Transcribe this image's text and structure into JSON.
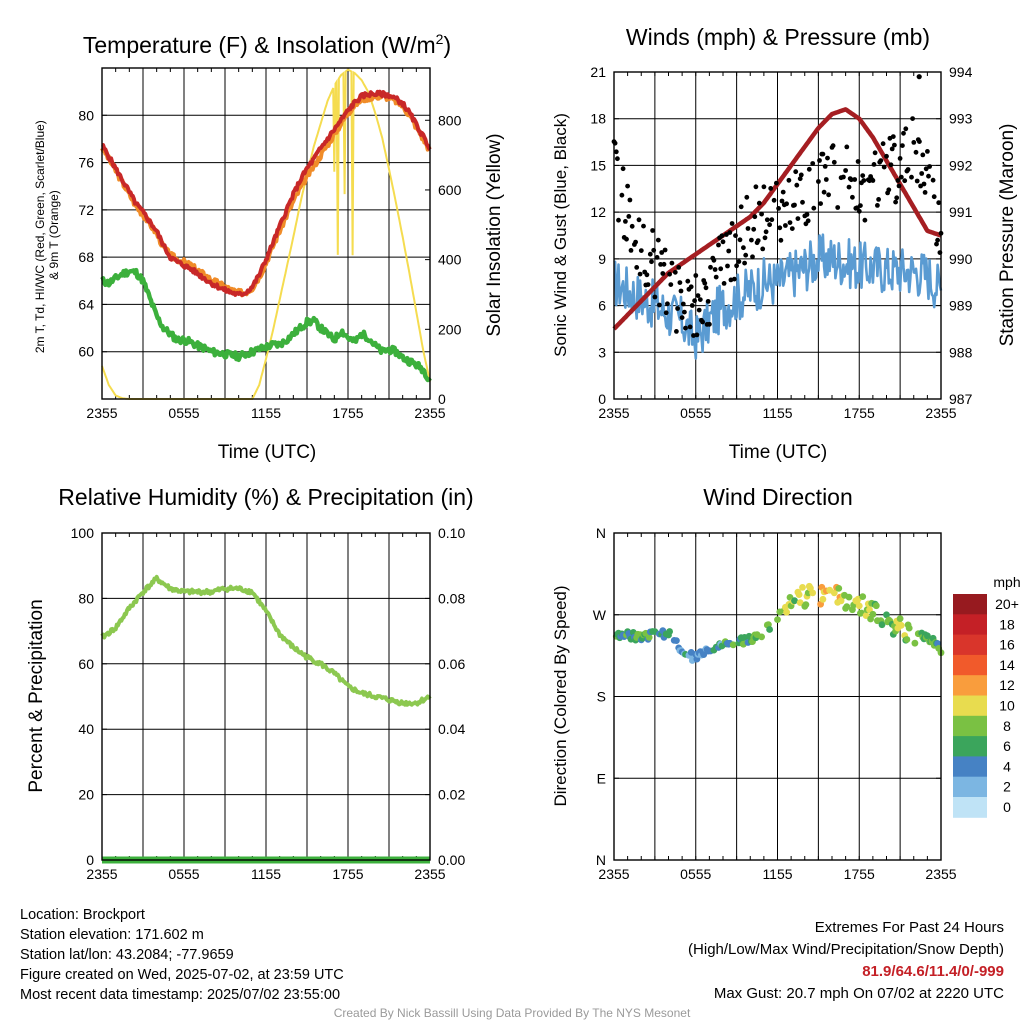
{
  "colors": {
    "red": "#c82828",
    "orange": "#f08c28",
    "green": "#3cb03c",
    "yellow": "#f5dc50",
    "blue": "#5a9bd2",
    "black": "#000000",
    "maroon": "#a51e22",
    "humidity": "#8cc850"
  },
  "time_ticks": [
    "2355",
    "0555",
    "1155",
    "1755",
    "2355"
  ],
  "chart_data": [
    {
      "type": "line",
      "title_pre": "Temperature (F) & Insolation (W/m",
      "title_sup": "2",
      "title_post": ")",
      "xlabel": "Time (UTC)",
      "ylabel_lines": [
        "2m T, Td, HI/WC (Red, Green, Scarlet/Blue)",
        "& 9m T (Orange)"
      ],
      "y2label": "Solar Insolation (Yellow)",
      "x_hours": [
        0,
        0.5,
        1,
        1.5,
        2,
        2.5,
        3,
        3.5,
        4,
        4.5,
        5,
        5.5,
        6,
        6.5,
        7,
        7.5,
        8,
        8.5,
        9,
        9.5,
        10,
        10.5,
        11,
        11.5,
        12,
        12.5,
        13,
        13.5,
        14,
        14.5,
        15,
        15.5,
        16,
        16.5,
        17,
        17.5,
        18,
        18.5,
        19,
        19.5,
        20,
        20.5,
        21,
        21.5,
        22,
        22.5,
        23,
        23.5,
        24
      ],
      "ylim": [
        56,
        84
      ],
      "yticks": [
        60,
        64,
        68,
        72,
        76,
        80
      ],
      "y2lim": [
        0,
        950
      ],
      "y2ticks": [
        0,
        200,
        400,
        600,
        800
      ],
      "series": [
        {
          "name": "2m T",
          "color_key": "red",
          "values": [
            77.5,
            76.5,
            75.5,
            74.5,
            73.5,
            72.5,
            71.8,
            71,
            70.2,
            69,
            68,
            67.6,
            67.3,
            67,
            66.6,
            66.2,
            65.8,
            65.5,
            65.2,
            65,
            64.8,
            65,
            65.5,
            66.5,
            67.8,
            69.2,
            70.6,
            72,
            73.3,
            74.5,
            75.5,
            76.3,
            77.2,
            78,
            78.8,
            79.6,
            80.4,
            81.1,
            81.6,
            81.8,
            81.8,
            81.8,
            81.7,
            81.4,
            81,
            80.2,
            79.2,
            78.2,
            77.2
          ]
        },
        {
          "name": "9m T",
          "color_key": "orange",
          "values": [
            77.3,
            76.3,
            75.3,
            74.3,
            73.3,
            72.3,
            71.6,
            70.8,
            70,
            68.8,
            68.2,
            67.8,
            67.6,
            67.3,
            66.9,
            66.5,
            66.1,
            65.8,
            65.5,
            65.2,
            65,
            65,
            65.4,
            66.3,
            67.5,
            68.9,
            70.2,
            71.5,
            72.7,
            73.8,
            74.8,
            75.7,
            76.6,
            77.5,
            78.4,
            79.3,
            80.2,
            80.9,
            81.3,
            81.5,
            81.6,
            81.6,
            81.5,
            81.2,
            80.8,
            80,
            79,
            78,
            77
          ]
        },
        {
          "name": "Td",
          "color_key": "green",
          "values": [
            66,
            65.8,
            66.2,
            66.6,
            66.8,
            66.7,
            66,
            64.5,
            63,
            62,
            61.5,
            61,
            61,
            60.8,
            60.5,
            60.3,
            60,
            59.9,
            59.8,
            59.7,
            59.6,
            59.8,
            60,
            60.2,
            60.4,
            60.6,
            60.6,
            61,
            61.5,
            62,
            62.5,
            62.6,
            62,
            61.5,
            61,
            61.8,
            61.2,
            60.8,
            61.5,
            61.2,
            60.5,
            60,
            60.2,
            60,
            59.5,
            59.2,
            58.9,
            58.5,
            57.6
          ]
        },
        {
          "name": "Solar",
          "color_key": "yellow",
          "values": [
            95,
            40,
            10,
            2,
            0,
            0,
            0,
            0,
            0,
            0,
            0,
            0,
            0,
            0,
            0,
            0,
            0,
            0,
            0,
            0,
            0,
            0,
            0,
            40,
            115,
            195,
            285,
            375,
            465,
            560,
            645,
            725,
            790,
            855,
            900,
            930,
            945,
            935,
            915,
            880,
            820,
            750,
            660,
            565,
            465,
            360,
            250,
            140,
            50
          ]
        }
      ]
    },
    {
      "type": "scatter",
      "title": "Winds (mph) & Pressure (mb)",
      "xlabel": "Time (UTC)",
      "ylabel": "Sonic Wind & Gust (Blue, Black)",
      "y2label": "Station Pressure (Maroon)",
      "ylim": [
        0,
        21
      ],
      "yticks": [
        0,
        3,
        6,
        9,
        12,
        15,
        18,
        21
      ],
      "y2lim": [
        987,
        994
      ],
      "y2ticks": [
        987,
        988,
        989,
        990,
        991,
        992,
        993,
        994
      ],
      "wind_hours": [
        0,
        1,
        2,
        3,
        4,
        5,
        6,
        7,
        8,
        9,
        10,
        11,
        12,
        13,
        14,
        15,
        16,
        17,
        18,
        19,
        20,
        21,
        22,
        23,
        24
      ],
      "wind": [
        7.5,
        7,
        6.5,
        6,
        5.5,
        5,
        3.8,
        5,
        6,
        6.5,
        7,
        7.5,
        7.5,
        8,
        8.5,
        9,
        9,
        8.8,
        8.5,
        8.5,
        8.3,
        8.3,
        8.2,
        8,
        7
      ],
      "gust_hours": [
        0,
        1,
        2,
        3,
        4,
        5,
        6,
        7,
        8,
        9,
        10,
        11,
        12,
        13,
        14,
        15,
        16,
        17,
        18,
        19,
        20,
        21,
        22,
        23,
        24
      ],
      "gust": [
        14.5,
        12,
        10,
        8.5,
        7,
        6.2,
        5.8,
        7,
        8.5,
        10,
        11.2,
        11.8,
        12,
        12.5,
        13,
        13.5,
        14,
        14.2,
        13.8,
        13.5,
        14.5,
        15,
        16,
        14.5,
        10.5
      ],
      "pressure_hours": [
        0,
        1,
        2,
        3,
        4,
        5,
        6,
        7,
        8,
        9,
        10,
        11,
        12,
        13,
        14,
        15,
        16,
        17,
        18,
        19,
        20,
        21,
        22,
        23,
        24
      ],
      "pressure": [
        988.5,
        988.8,
        989.1,
        989.4,
        989.7,
        989.9,
        990.1,
        990.3,
        990.5,
        990.7,
        990.9,
        991.2,
        991.6,
        992,
        992.4,
        992.8,
        993.1,
        993.2,
        993.0,
        992.6,
        992.1,
        991.6,
        991.1,
        990.6,
        990.5
      ],
      "max_gust_point": {
        "hour": 22.4,
        "value": 20.7
      }
    },
    {
      "type": "line",
      "title": "Relative Humidity (%) & Precipitation (in)",
      "xlabel": "",
      "ylabel": "Percent & Precipitation",
      "ylim": [
        0,
        100
      ],
      "yticks": [
        0,
        20,
        40,
        60,
        80,
        100
      ],
      "y2lim": [
        0,
        0.1
      ],
      "y2ticks": [
        "0.00",
        "0.02",
        "0.04",
        "0.06",
        "0.08",
        "0.10"
      ],
      "x_hours": [
        0,
        1,
        2,
        3,
        4,
        5,
        6,
        7,
        8,
        9,
        10,
        11,
        12,
        13,
        14,
        15,
        16,
        17,
        18,
        19,
        20,
        21,
        22,
        23,
        24
      ],
      "series": [
        {
          "name": "RH",
          "color_key": "humidity",
          "values": [
            68,
            71,
            77,
            82,
            86,
            83,
            82,
            82,
            82,
            83,
            83,
            82,
            76,
            69,
            65,
            62,
            60,
            57,
            53,
            51,
            50,
            49,
            48,
            48,
            50
          ]
        },
        {
          "name": "Precipitation",
          "color_key": "green",
          "values": [
            0,
            0,
            0,
            0,
            0,
            0,
            0,
            0,
            0,
            0,
            0,
            0,
            0,
            0,
            0,
            0,
            0,
            0,
            0,
            0,
            0,
            0,
            0,
            0,
            0
          ]
        }
      ]
    },
    {
      "type": "scatter",
      "title": "Wind Direction",
      "xlabel": "",
      "ylabel": "Direction (Colored By Speed)",
      "yticks": [
        "N",
        "E",
        "S",
        "W",
        "N"
      ],
      "ylim": [
        0,
        360
      ],
      "x_hours": [
        0,
        1,
        2,
        3,
        4,
        5,
        6,
        7,
        8,
        9,
        10,
        11,
        12,
        13,
        14,
        15,
        16,
        17,
        18,
        19,
        20,
        21,
        22,
        23,
        24
      ],
      "direction": [
        250,
        247,
        245,
        248,
        250,
        230,
        222,
        232,
        238,
        240,
        242,
        250,
        268,
        285,
        290,
        292,
        290,
        288,
        282,
        275,
        262,
        255,
        250,
        246,
        232
      ],
      "speed": [
        7,
        6,
        6,
        5,
        5,
        4,
        3,
        4,
        5,
        6,
        6,
        7,
        7,
        8,
        9,
        10,
        10,
        9,
        9,
        8,
        8,
        8,
        7,
        7,
        6
      ],
      "colorbar_title": "mph",
      "colorbar_labels": [
        "20+",
        "18",
        "16",
        "14",
        "12",
        "10",
        "8",
        "6",
        "4",
        "2",
        "0"
      ],
      "colorbar_colors": [
        "#971a1f",
        "#c42026",
        "#d9352b",
        "#f15a2b",
        "#f99d3d",
        "#e8dc4f",
        "#7ac143",
        "#3ba55c",
        "#4682c4",
        "#7cb6e2",
        "#bfe3f6"
      ]
    }
  ],
  "info": {
    "location": "Location: Brockport",
    "elevation": "Station elevation: 171.602 m",
    "latlon": "Station lat/lon: 43.2084; -77.9659",
    "created": "Figure created on Wed, 2025-07-02, at 23:59 UTC",
    "recent": "Most recent data timestamp: 2025/07/02 23:55:00"
  },
  "extremes": {
    "title": "Extremes For Past 24 Hours",
    "subtitle": "(High/Low/Max Wind/Precipitation/Snow Depth)",
    "values": "81.9/64.6/11.4/0/-999",
    "max_gust": "Max Gust: 20.7 mph On 07/02 at 2220 UTC"
  },
  "credit": "Created By Nick Bassill Using Data Provided By The NYS Mesonet"
}
